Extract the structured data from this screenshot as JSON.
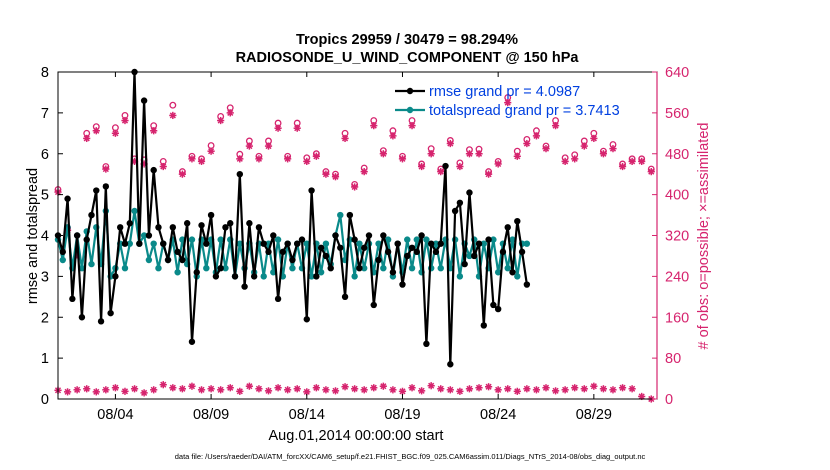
{
  "colors": {
    "rmse": "#000000",
    "spread": "#0a8a8a",
    "obs": "#d6246e",
    "legend_text": "#0040e0",
    "axis": "#000000"
  },
  "chart_data": {
    "type": "line",
    "title": "Tropics 29959 / 30479 = 98.294%",
    "subtitle": "RADIOSONDE_U_WIND_COMPONENT @ 150 hPa",
    "xlabel": "Aug.01,2014 00:00:00 start",
    "ylabel_left": "rmse and totalspread",
    "ylabel_right": "# of obs: o=possible; ×=assimilated",
    "footnote": "data file: /Users/raeder/DAI/ATM_forcXX/CAM6_setup/f.e21.FHIST_BGC.f09_025.CAM6assim.011/Diags_NTrS_2014-08/obs_diag_output.nc",
    "xlim": [
      1,
      32.3
    ],
    "ylim_left": [
      0,
      8
    ],
    "ylim_right": [
      0,
      640
    ],
    "x_ticks": [
      {
        "value": 4,
        "label": "08/04"
      },
      {
        "value": 9,
        "label": "08/09"
      },
      {
        "value": 14,
        "label": "08/14"
      },
      {
        "value": 19,
        "label": "08/19"
      },
      {
        "value": 24,
        "label": "08/24"
      },
      {
        "value": 29,
        "label": "08/29"
      }
    ],
    "y_ticks_left": [
      "0",
      "1",
      "2",
      "3",
      "4",
      "5",
      "6",
      "7",
      "8"
    ],
    "y_ticks_right": [
      "0",
      "80",
      "160",
      "240",
      "320",
      "400",
      "480",
      "560",
      "640"
    ],
    "legend": {
      "placement": "top-right",
      "entries": [
        "rmse grand pr = 4.0987",
        "totalspread grand pr = 3.7413"
      ]
    },
    "x_start": 1.0,
    "x_step": 0.25,
    "series": [
      {
        "name": "rmse",
        "axis": "left",
        "values": [
          4.0,
          3.6,
          4.9,
          2.45,
          4.0,
          2.0,
          3.9,
          4.5,
          5.1,
          1.9,
          5.2,
          2.1,
          3.0,
          4.2,
          3.8,
          4.3,
          8.0,
          3.8,
          7.3,
          4.0,
          5.6,
          4.2,
          3.8,
          3.4,
          4.2,
          3.6,
          3.4,
          4.3,
          1.4,
          3.1,
          4.25,
          3.8,
          4.5,
          3.0,
          3.2,
          4.2,
          4.3,
          3.0,
          5.5,
          2.75,
          4.3,
          3.0,
          4.2,
          3.8,
          3.6,
          4.0,
          2.45,
          3.6,
          3.8,
          3.4,
          3.8,
          3.9,
          1.95,
          5.1,
          3.0,
          3.7,
          3.5,
          3.2,
          4.0,
          3.7,
          2.5,
          4.5,
          3.9,
          3.2,
          3.7,
          4.0,
          2.3,
          3.4,
          4.0,
          3.6,
          3.1,
          3.8,
          2.8,
          3.5,
          3.7,
          3.6,
          4.0,
          1.35,
          3.8,
          3.6,
          3.8,
          5.7,
          0.85,
          4.6,
          4.8,
          3.3,
          5.05,
          3.5,
          3.8,
          1.8,
          3.9,
          2.3,
          2.2,
          3.6,
          4.2,
          3.1,
          4.35,
          3.6,
          2.8
        ]
      },
      {
        "name": "totalspread",
        "axis": "left",
        "values": [
          3.9,
          3.4,
          4.2,
          3.2,
          4.0,
          3.2,
          4.1,
          3.3,
          4.2,
          3.3,
          4.6,
          3.0,
          3.2,
          3.8,
          3.2,
          3.8,
          4.6,
          3.8,
          4.0,
          3.4,
          3.8,
          3.2,
          3.8,
          3.4,
          3.9,
          3.1,
          3.9,
          3.3,
          3.9,
          3.0,
          3.9,
          3.2,
          3.9,
          3.1,
          3.9,
          3.2,
          3.9,
          3.0,
          3.8,
          3.2,
          3.8,
          3.1,
          3.8,
          3.0,
          3.8,
          3.1,
          3.9,
          3.0,
          3.8,
          3.2,
          3.8,
          3.2,
          3.8,
          3.0,
          3.8,
          3.1,
          3.8,
          3.3,
          4.0,
          4.5,
          3.4,
          3.9,
          3.0,
          3.8,
          3.2,
          3.8,
          3.1,
          3.8,
          3.2,
          3.9,
          3.0,
          3.8,
          3.1,
          3.9,
          3.2,
          3.9,
          3.1,
          3.9,
          3.2,
          3.8,
          3.2,
          3.9,
          3.2,
          3.9,
          3.0,
          3.8,
          3.5,
          3.9,
          3.0,
          3.8,
          3.2,
          3.9,
          3.1,
          3.8,
          3.2,
          3.9,
          3.0,
          3.8,
          3.8
        ]
      },
      {
        "name": "obs_possible",
        "axis": "right",
        "values": [
          410,
          335,
          285,
          520,
          533,
          455,
          531,
          555,
          470,
          468,
          535,
          465,
          575,
          445,
          475,
          470,
          496,
          553,
          570,
          479,
          505,
          475,
          505,
          540,
          475,
          540,
          472,
          480,
          445,
          440,
          520,
          420,
          452,
          545,
          486,
          525,
          475,
          545,
          460,
          490,
          450,
          506,
          462,
          488,
          489,
          445,
          465,
          590,
          485,
          508,
          525,
          495,
          545,
          472,
          478,
          505,
          520,
          485,
          498,
          460,
          470,
          470,
          450
        ]
      },
      {
        "name": "obs_assimilated",
        "axis": "right",
        "values": [
          405,
          330,
          282,
          510,
          525,
          450,
          520,
          545,
          465,
          460,
          525,
          455,
          555,
          440,
          470,
          465,
          485,
          545,
          560,
          470,
          495,
          470,
          495,
          530,
          470,
          530,
          465,
          475,
          440,
          435,
          510,
          415,
          445,
          535,
          480,
          515,
          470,
          535,
          455,
          480,
          445,
          500,
          455,
          480,
          480,
          440,
          460,
          580,
          475,
          500,
          515,
          490,
          535,
          465,
          470,
          495,
          510,
          480,
          490,
          455,
          465,
          465,
          445
        ]
      },
      {
        "name": "obs_low",
        "axis": "right",
        "values": [
          17,
          14,
          18,
          20,
          14,
          18,
          22,
          15,
          20,
          12,
          18,
          28,
          22,
          20,
          25,
          18,
          20,
          18,
          22,
          15,
          25,
          20,
          16,
          22,
          18,
          20,
          14,
          22,
          18,
          16,
          24,
          20,
          18,
          22,
          25,
          18,
          15,
          22,
          16,
          26,
          20,
          18,
          15,
          20,
          22,
          24,
          18,
          20,
          15,
          20,
          18,
          22,
          16,
          18,
          22,
          20,
          25,
          20,
          18,
          22,
          20,
          5,
          0
        ]
      }
    ],
    "obs_x": [
      1.0,
      1.5,
      2.0,
      2.5,
      3.0,
      3.5,
      4.0,
      4.5,
      5.0,
      5.5,
      6.0,
      6.5,
      7.0,
      7.5,
      8.0,
      8.5,
      9.0,
      9.5,
      10.0,
      10.5,
      11.0,
      11.5,
      12.0,
      12.5,
      13.0,
      13.5,
      14.0,
      14.5,
      15.0,
      15.5,
      16.0,
      16.5,
      17.0,
      17.5,
      18.0,
      18.5,
      19.0,
      19.5,
      20.0,
      20.5,
      21.0,
      21.5,
      22.0,
      22.5,
      23.0,
      23.5,
      24.0,
      24.5,
      25.0,
      25.5,
      26.0,
      26.5,
      27.0,
      27.5,
      28.0,
      28.5,
      29.0,
      29.5,
      30.0,
      30.5,
      31.0,
      31.5,
      32.0
    ]
  }
}
